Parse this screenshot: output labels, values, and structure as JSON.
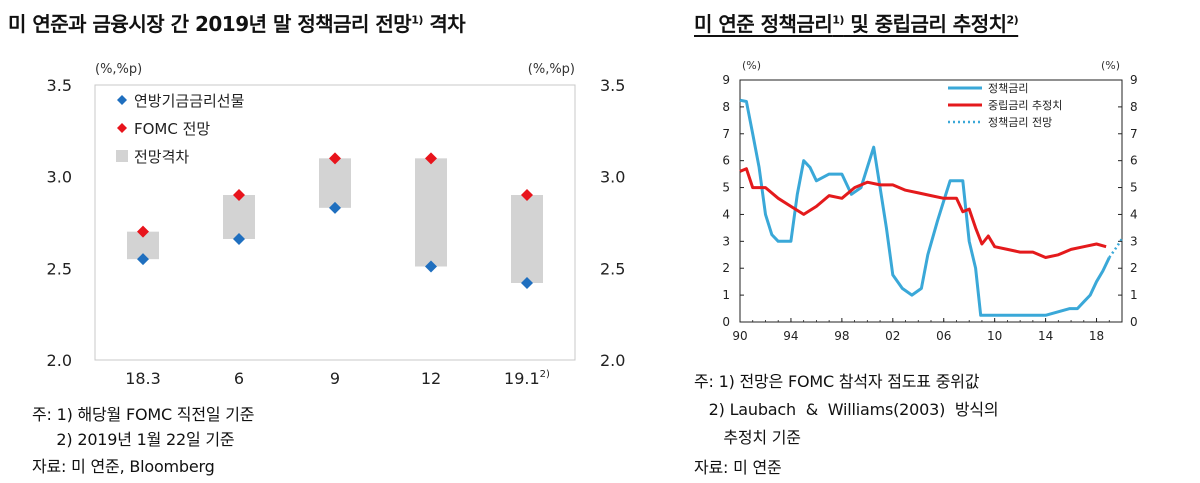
{
  "left": {
    "title": "미 연준과 금융시장 간 2019년 말 정책금리 전망",
    "title_sup": "1)",
    "title_tail": " 격차",
    "notes": [
      "주: 1) 해당월 FOMC 직전일 기준",
      "     2) 2019년 1월 22일 기준",
      "자료: 미 연준, Bloomberg"
    ]
  },
  "right": {
    "title": "미 연준 정책금리",
    "title_sup1": "1)",
    "title_mid": " 및 중립금리 추정치",
    "title_sup2": "2)",
    "notes": [
      "주: 1) 전망은 FOMC 참석자 점도표 중위값",
      "   2) Laubach  &  Williams(2003)  방식의",
      "      추정치 기준",
      "자료: 미 연준"
    ]
  },
  "chart_data": [
    {
      "type": "scatter",
      "title": "미 연준과 금융시장 간 2019년 말 정책금리 전망1) 격차",
      "unit_left": "(%,%p)",
      "unit_right": "(%,%p)",
      "categories": [
        "18.3",
        "6",
        "9",
        "12",
        "19.1"
      ],
      "category_sup": [
        "",
        "",
        "",
        "",
        "2)"
      ],
      "ylim": [
        2.0,
        3.5
      ],
      "yticks": [
        "2.0",
        "2.5",
        "3.0",
        "3.5"
      ],
      "series": [
        {
          "name": "연방기금금리선물",
          "color": "#1f6fbf",
          "values": [
            2.55,
            2.66,
            2.83,
            2.51,
            2.42
          ]
        },
        {
          "name": "FOMC 전망",
          "color": "#e8141c",
          "values": [
            2.7,
            2.9,
            3.1,
            3.1,
            2.9
          ]
        }
      ],
      "gap": {
        "name": "전망격차",
        "color": "#d3d3d3",
        "ranges": [
          [
            2.55,
            2.7
          ],
          [
            2.66,
            2.9
          ],
          [
            2.83,
            3.1
          ],
          [
            2.51,
            3.1
          ],
          [
            2.42,
            2.9
          ]
        ]
      },
      "grid": false,
      "legend": "top-left"
    },
    {
      "type": "line",
      "title": "미 연준 정책금리1) 및 중립금리 추정치2)",
      "unit_left": "(%)",
      "unit_right": "(%)",
      "xlim": [
        1990,
        2020
      ],
      "xticks": [
        "90",
        "94",
        "98",
        "02",
        "06",
        "10",
        "14",
        "18"
      ],
      "xtick_values": [
        1990,
        1994,
        1998,
        2002,
        2006,
        2010,
        2014,
        2018
      ],
      "ylim": [
        0,
        9
      ],
      "yticks": [
        "0",
        "1",
        "2",
        "3",
        "4",
        "5",
        "6",
        "7",
        "8",
        "9"
      ],
      "series": [
        {
          "name": "정책금리",
          "color": "#3aa8d8",
          "style": "solid",
          "x": [
            1990.0,
            1990.5,
            1991.0,
            1991.5,
            1992.0,
            1992.5,
            1993.0,
            1994.0,
            1994.5,
            1995.0,
            1995.5,
            1996.0,
            1997.0,
            1998.0,
            1998.75,
            1999.5,
            2000.0,
            2000.5,
            2001.0,
            2001.5,
            2002.0,
            2002.75,
            2003.5,
            2004.25,
            2004.75,
            2005.5,
            2006.0,
            2006.5,
            2007.5,
            2008.0,
            2008.5,
            2008.9,
            2009.0,
            2010.0,
            2012.0,
            2014.0,
            2015.9,
            2016.5,
            2017.0,
            2017.5,
            2018.0,
            2018.5,
            2019.0
          ],
          "y": [
            8.25,
            8.2,
            7.0,
            5.75,
            4.0,
            3.25,
            3.0,
            3.0,
            4.75,
            6.0,
            5.75,
            5.25,
            5.5,
            5.5,
            4.75,
            5.0,
            5.75,
            6.5,
            5.0,
            3.5,
            1.75,
            1.25,
            1.0,
            1.25,
            2.5,
            3.75,
            4.5,
            5.25,
            5.25,
            3.0,
            2.0,
            0.25,
            0.25,
            0.25,
            0.25,
            0.25,
            0.5,
            0.5,
            0.75,
            1.0,
            1.5,
            1.9,
            2.4
          ]
        },
        {
          "name": "중립금리 추정치",
          "color": "#e41a1c",
          "style": "solid",
          "x": [
            1990.0,
            1990.5,
            1991.0,
            1992.0,
            1993.0,
            1994.0,
            1995.0,
            1996.0,
            1997.0,
            1998.0,
            1999.0,
            2000.0,
            2001.0,
            2002.0,
            2003.0,
            2004.0,
            2005.0,
            2006.0,
            2007.0,
            2007.5,
            2008.0,
            2008.5,
            2009.0,
            2009.5,
            2010.0,
            2011.0,
            2012.0,
            2013.0,
            2014.0,
            2015.0,
            2016.0,
            2017.0,
            2018.0,
            2018.75
          ],
          "y": [
            5.6,
            5.7,
            5.0,
            5.0,
            4.6,
            4.3,
            4.0,
            4.3,
            4.7,
            4.6,
            5.0,
            5.2,
            5.1,
            5.1,
            4.9,
            4.8,
            4.7,
            4.6,
            4.6,
            4.1,
            4.2,
            3.5,
            2.9,
            3.2,
            2.8,
            2.7,
            2.6,
            2.6,
            2.4,
            2.5,
            2.7,
            2.8,
            2.9,
            2.8
          ]
        },
        {
          "name": "정책금리 전망",
          "color": "#3aa8d8",
          "style": "dotted",
          "x": [
            2019.0,
            2019.6,
            2020.0
          ],
          "y": [
            2.4,
            2.8,
            3.1
          ]
        }
      ],
      "grid": false,
      "legend": "top-right"
    }
  ]
}
